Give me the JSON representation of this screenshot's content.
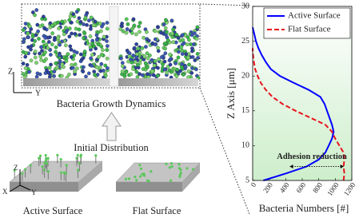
{
  "figure": {
    "growth_label": "Bacteria Growth Dynamics",
    "initial_label": "Initial Distribution",
    "active_label": "Active Surface",
    "flat_label": "Flat Surface",
    "top_axes": [
      "Z",
      "Y"
    ],
    "bottom_axes": [
      "Z",
      "X",
      "Y"
    ]
  },
  "chart_data": {
    "type": "line",
    "xlabel": "Bacteria Numbers [#]",
    "ylabel": "Z Axis [μm]",
    "xlim": [
      0,
      1200
    ],
    "xticks": [
      0,
      200,
      400,
      600,
      800,
      1000,
      1200
    ],
    "ylim": [
      5,
      30
    ],
    "yticks": [
      5,
      10,
      15,
      20,
      25,
      30
    ],
    "legend": "upper right",
    "series": [
      {
        "name": "Active Surface",
        "color": "#0000ff",
        "dash": "solid",
        "x": [
          130,
          400,
          650,
          800,
          880,
          920,
          960,
          980,
          960,
          930,
          900,
          870,
          820,
          680,
          500,
          330,
          220,
          160,
          110,
          70,
          40,
          20,
          0
        ],
        "y": [
          5,
          6,
          7,
          8,
          9,
          10,
          11,
          12,
          13,
          14,
          15,
          16,
          17,
          18,
          19,
          20,
          21,
          22,
          23,
          24,
          25,
          26,
          27
        ]
      },
      {
        "name": "Flat Surface",
        "color": "#e8141c",
        "dash": "dashed",
        "x": [
          1100,
          1110,
          1100,
          1110,
          1100,
          1050,
          1000,
          960,
          880,
          700,
          520,
          360,
          240,
          160,
          100,
          60,
          30,
          15,
          5,
          0
        ],
        "y": [
          5,
          6,
          7,
          8,
          9,
          10,
          11,
          12,
          13,
          14,
          15,
          16,
          17,
          18,
          19,
          20,
          21,
          22,
          23,
          24
        ]
      }
    ],
    "annotation": {
      "text": "Adhesion reduction",
      "x": [
        450,
        1100
      ],
      "y": 7
    }
  }
}
